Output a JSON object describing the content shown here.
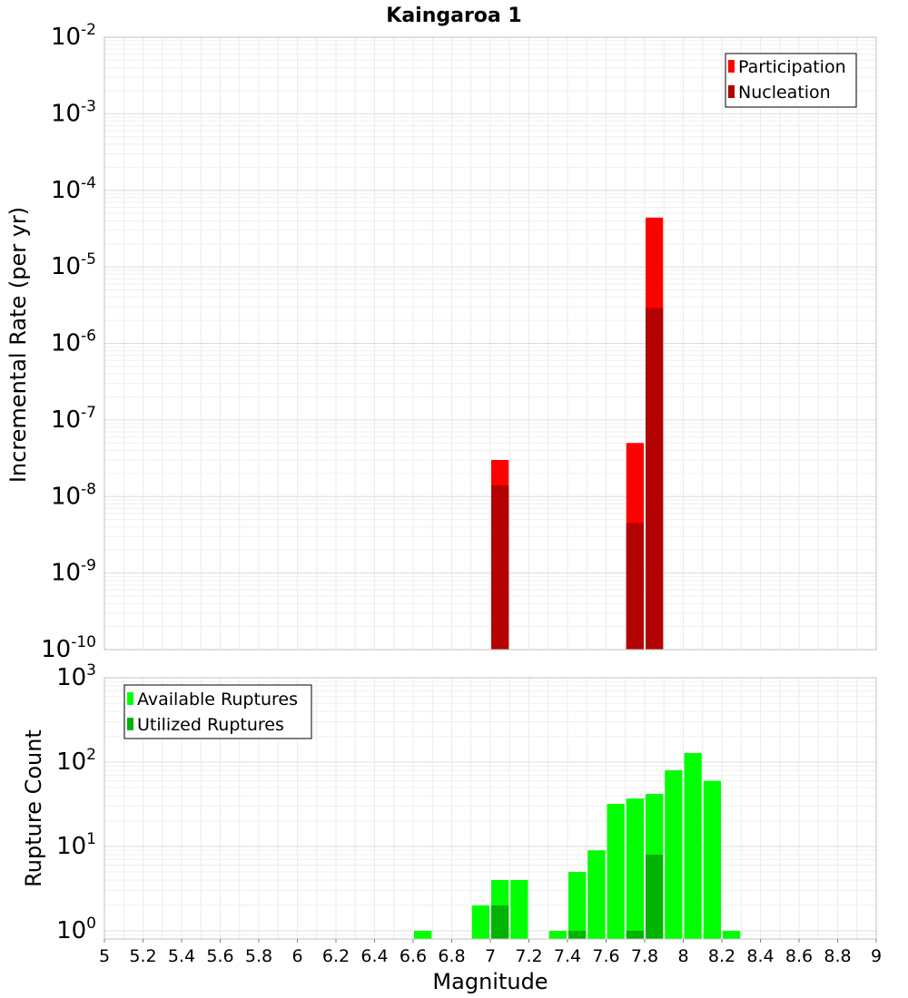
{
  "chart_data": [
    {
      "type": "bar",
      "title": "Kaingaroa 1",
      "ylabel": "Incremental Rate (per yr)",
      "yscale": "log",
      "ylim": [
        1e-10,
        0.01
      ],
      "ytick_exponents": [
        "-10",
        "-9",
        "-8",
        "-7",
        "-6",
        "-5",
        "-4",
        "-3",
        "-2"
      ],
      "ytick_base": "10",
      "xlim": [
        5,
        9
      ],
      "grid": true,
      "legend_position": "top-right",
      "colors": {
        "Participation": "#ff0000",
        "Nucleation": "#b30000"
      },
      "series": [
        {
          "name": "Participation",
          "x": [
            7.05,
            7.75,
            7.85
          ],
          "values": [
            3e-08,
            5e-08,
            4.4e-05
          ]
        },
        {
          "name": "Nucleation",
          "x": [
            7.05,
            7.75,
            7.85
          ],
          "values": [
            1.4e-08,
            4.5e-09,
            2.9e-06
          ]
        }
      ]
    },
    {
      "type": "bar",
      "ylabel": "Rupture Count",
      "xlabel": "Magnitude",
      "yscale": "log",
      "ylim": [
        0.8,
        1000
      ],
      "ytick_exponents": [
        "0",
        "1",
        "2",
        "3"
      ],
      "ytick_base": "10",
      "xlim": [
        5,
        9
      ],
      "xticks": [
        "5",
        "5.2",
        "5.4",
        "5.6",
        "5.8",
        "6",
        "6.2",
        "6.4",
        "6.6",
        "6.8",
        "7",
        "7.2",
        "7.4",
        "7.6",
        "7.8",
        "8",
        "8.2",
        "8.4",
        "8.6",
        "8.8",
        "9"
      ],
      "grid": true,
      "legend_position": "top-left",
      "colors": {
        "Available Ruptures": "#00ff00",
        "Utilized Ruptures": "#00b300"
      },
      "series": [
        {
          "name": "Available Ruptures",
          "x": [
            6.65,
            6.95,
            7.05,
            7.15,
            7.35,
            7.45,
            7.55,
            7.65,
            7.75,
            7.85,
            7.95,
            8.05,
            8.15,
            8.25
          ],
          "values": [
            1,
            2,
            4,
            4,
            1,
            5,
            9,
            32,
            37,
            42,
            80,
            128,
            60,
            1
          ]
        },
        {
          "name": "Utilized Ruptures",
          "x": [
            7.05,
            7.45,
            7.75,
            7.85
          ],
          "values": [
            2,
            1,
            1,
            8
          ]
        }
      ]
    }
  ]
}
